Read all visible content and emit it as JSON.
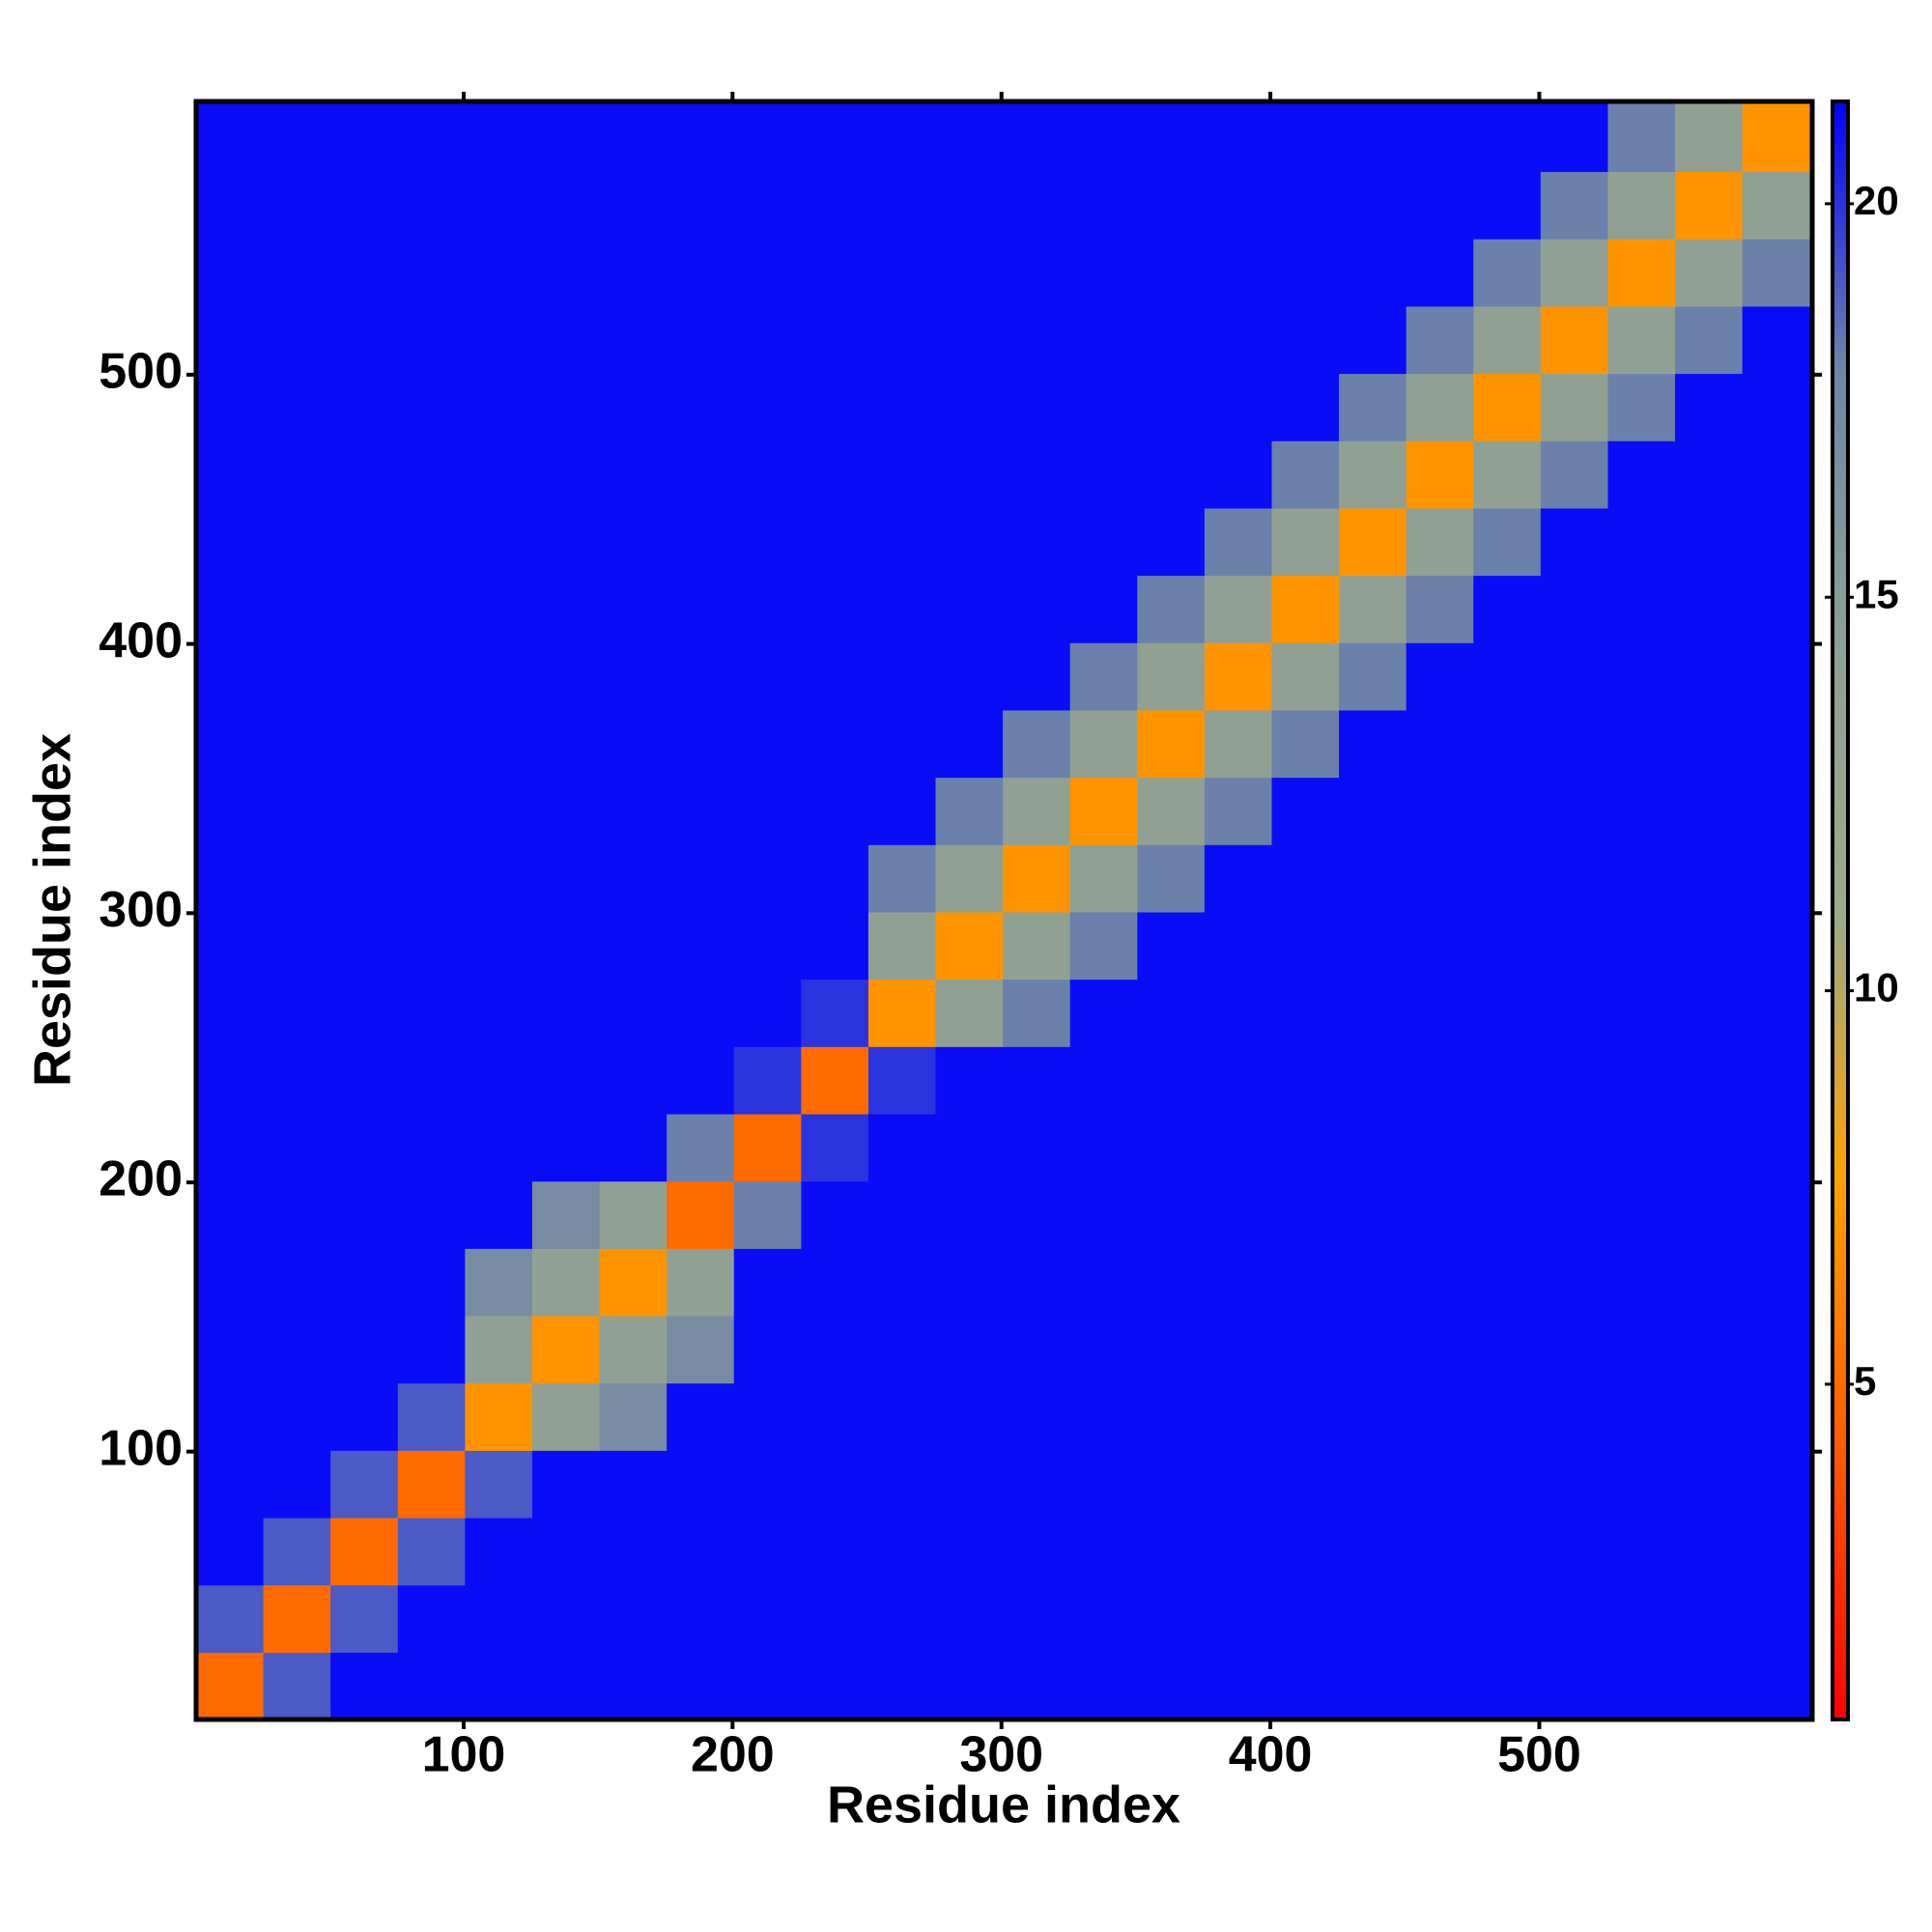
{
  "chart_data": {
    "type": "heatmap",
    "x_label": "Residue index",
    "y_label": "Residue index",
    "xlim": [
      0.5,
      601.5
    ],
    "ylim": [
      0.5,
      601.5
    ],
    "xticks": [
      100,
      200,
      300,
      400,
      500
    ],
    "yticks": [
      100,
      200,
      300,
      400,
      500
    ],
    "xbins": [
      0.5,
      25.5,
      50.5,
      75.5,
      100.5,
      125.5,
      150.5,
      175.5,
      200.5,
      225.5,
      250.5,
      275.5,
      300.5,
      325.5,
      350.5,
      375.5,
      400.5,
      425.5,
      450.5,
      475.5,
      500.5,
      525.5,
      550.5,
      575.5,
      601.5
    ],
    "ybins": [
      0.5,
      25.5,
      50.5,
      75.5,
      100.5,
      125.5,
      150.5,
      175.5,
      200.5,
      225.5,
      250.5,
      275.5,
      300.5,
      325.5,
      350.5,
      375.5,
      400.5,
      425.5,
      450.5,
      475.5,
      500.5,
      525.5,
      550.5,
      575.5,
      601.5
    ],
    "values": [
      [
        5,
        19,
        21,
        21,
        21,
        21,
        21,
        21,
        21,
        21,
        21,
        21,
        21,
        21,
        21,
        21,
        21,
        21,
        21,
        21,
        21,
        21,
        21,
        21
      ],
      [
        19,
        5,
        19,
        21,
        21,
        21,
        21,
        21,
        21,
        21,
        21,
        21,
        21,
        21,
        21,
        21,
        21,
        21,
        21,
        21,
        21,
        21,
        21,
        21
      ],
      [
        21,
        19,
        5,
        19,
        21,
        21,
        21,
        21,
        21,
        21,
        21,
        21,
        21,
        21,
        21,
        21,
        21,
        21,
        21,
        21,
        21,
        21,
        21,
        21
      ],
      [
        21,
        21,
        19,
        5,
        19,
        21,
        21,
        21,
        21,
        21,
        21,
        21,
        21,
        21,
        21,
        21,
        21,
        21,
        21,
        21,
        21,
        21,
        21,
        21
      ],
      [
        21,
        21,
        21,
        19,
        7,
        14,
        17,
        21,
        21,
        21,
        21,
        21,
        21,
        21,
        21,
        21,
        21,
        21,
        21,
        21,
        21,
        21,
        21,
        21
      ],
      [
        21,
        21,
        21,
        21,
        14,
        7,
        14,
        17,
        21,
        21,
        21,
        21,
        21,
        21,
        21,
        21,
        21,
        21,
        21,
        21,
        21,
        21,
        21,
        21
      ],
      [
        21,
        21,
        21,
        21,
        17,
        14,
        7,
        14,
        21,
        21,
        21,
        21,
        21,
        21,
        21,
        21,
        21,
        21,
        21,
        21,
        21,
        21,
        21,
        21
      ],
      [
        21,
        21,
        21,
        21,
        21,
        17,
        14,
        5,
        18,
        21,
        21,
        21,
        21,
        21,
        21,
        21,
        21,
        21,
        21,
        21,
        21,
        21,
        21,
        21
      ],
      [
        21,
        21,
        21,
        21,
        21,
        21,
        21,
        18,
        5,
        20,
        21,
        21,
        21,
        21,
        21,
        21,
        21,
        21,
        21,
        21,
        21,
        21,
        21,
        21
      ],
      [
        21,
        21,
        21,
        21,
        21,
        21,
        21,
        21,
        20,
        5,
        20,
        21,
        21,
        21,
        21,
        21,
        21,
        21,
        21,
        21,
        21,
        21,
        21,
        21
      ],
      [
        21,
        21,
        21,
        21,
        21,
        21,
        21,
        21,
        21,
        20,
        7,
        14,
        18,
        21,
        21,
        21,
        21,
        21,
        21,
        21,
        21,
        21,
        21,
        21
      ],
      [
        21,
        21,
        21,
        21,
        21,
        21,
        21,
        21,
        21,
        21,
        14,
        7,
        14,
        18,
        21,
        21,
        21,
        21,
        21,
        21,
        21,
        21,
        21,
        21
      ],
      [
        21,
        21,
        21,
        21,
        21,
        21,
        21,
        21,
        21,
        21,
        18,
        14,
        7,
        14,
        18,
        21,
        21,
        21,
        21,
        21,
        21,
        21,
        21,
        21
      ],
      [
        21,
        21,
        21,
        21,
        21,
        21,
        21,
        21,
        21,
        21,
        21,
        18,
        14,
        7,
        14,
        18,
        21,
        21,
        21,
        21,
        21,
        21,
        21,
        21
      ],
      [
        21,
        21,
        21,
        21,
        21,
        21,
        21,
        21,
        21,
        21,
        21,
        21,
        18,
        14,
        7,
        14,
        18,
        21,
        21,
        21,
        21,
        21,
        21,
        21
      ],
      [
        21,
        21,
        21,
        21,
        21,
        21,
        21,
        21,
        21,
        21,
        21,
        21,
        21,
        18,
        14,
        7,
        14,
        18,
        21,
        21,
        21,
        21,
        21,
        21
      ],
      [
        21,
        21,
        21,
        21,
        21,
        21,
        21,
        21,
        21,
        21,
        21,
        21,
        21,
        21,
        18,
        14,
        7,
        14,
        18,
        21,
        21,
        21,
        21,
        21
      ],
      [
        21,
        21,
        21,
        21,
        21,
        21,
        21,
        21,
        21,
        21,
        21,
        21,
        21,
        21,
        21,
        18,
        14,
        7,
        14,
        18,
        21,
        21,
        21,
        21
      ],
      [
        21,
        21,
        21,
        21,
        21,
        21,
        21,
        21,
        21,
        21,
        21,
        21,
        21,
        21,
        21,
        21,
        18,
        14,
        7,
        14,
        18,
        21,
        21,
        21
      ],
      [
        21,
        21,
        21,
        21,
        21,
        21,
        21,
        21,
        21,
        21,
        21,
        21,
        21,
        21,
        21,
        21,
        21,
        18,
        14,
        7,
        14,
        18,
        21,
        21
      ],
      [
        21,
        21,
        21,
        21,
        21,
        21,
        21,
        21,
        21,
        21,
        21,
        21,
        21,
        21,
        21,
        21,
        21,
        21,
        18,
        14,
        7,
        14,
        18,
        21
      ],
      [
        21,
        21,
        21,
        21,
        21,
        21,
        21,
        21,
        21,
        21,
        21,
        21,
        21,
        21,
        21,
        21,
        21,
        21,
        21,
        18,
        14,
        7,
        14,
        18
      ],
      [
        21,
        21,
        21,
        21,
        21,
        21,
        21,
        21,
        21,
        21,
        21,
        21,
        21,
        21,
        21,
        21,
        21,
        21,
        21,
        21,
        18,
        14,
        7,
        14
      ],
      [
        21,
        21,
        21,
        21,
        21,
        21,
        21,
        21,
        21,
        21,
        21,
        21,
        21,
        21,
        21,
        21,
        21,
        21,
        21,
        21,
        21,
        18,
        14,
        7
      ]
    ],
    "clim": [
      0.74,
      21.3
    ],
    "cticks": [
      5,
      10,
      15,
      20
    ],
    "colors": [
      "#ff0000",
      "#ff5a00",
      "#ffa000",
      "#9aab8a",
      "#8e9f96",
      "#6f86a8",
      "#0000ff"
    ]
  }
}
